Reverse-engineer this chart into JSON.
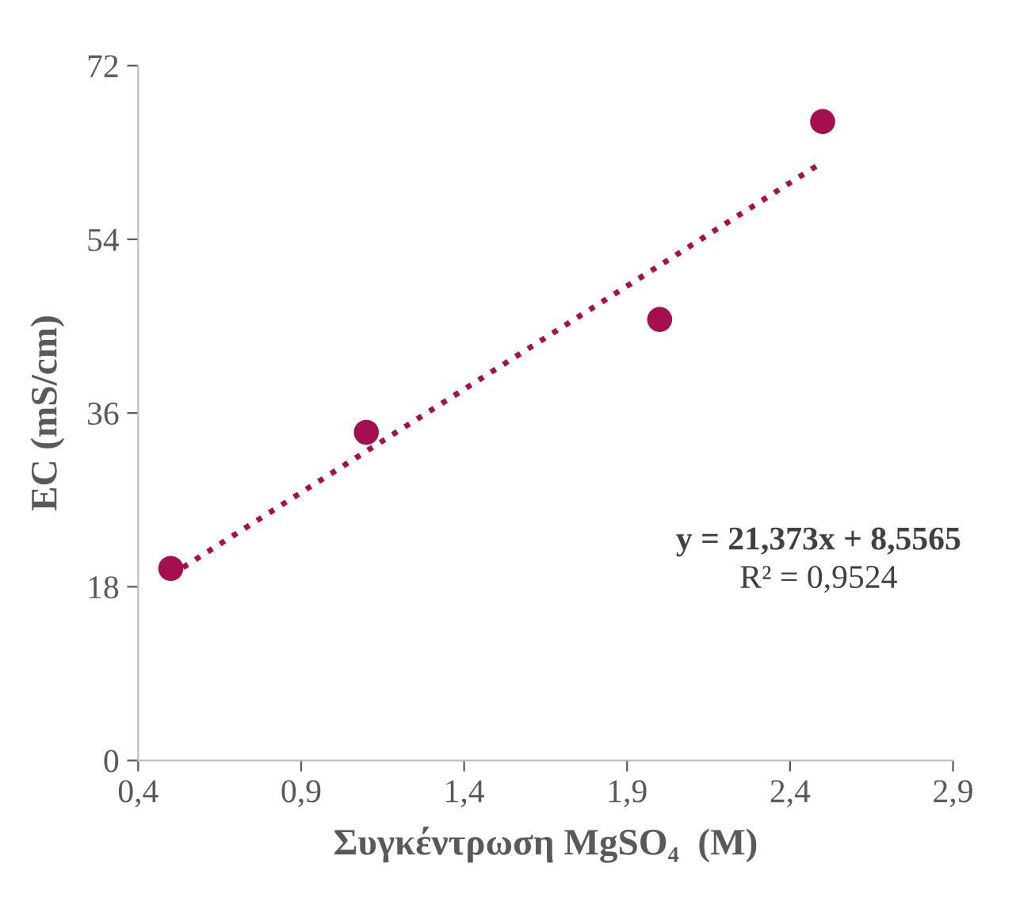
{
  "chart_data": {
    "type": "scatter",
    "xlabel": "Συγκέντρωση MgSO₄  (M)",
    "ylabel": "EC (mS/cm)",
    "series": [
      {
        "color": "#a50f4f",
        "marker": "circle",
        "x": [
          0.5,
          1.1,
          2.0,
          2.5
        ],
        "values": [
          19.9,
          34.0,
          45.7,
          66.2
        ]
      },
      {
        "type": "line",
        "color": "#a50f4f",
        "line_style": "dotted",
        "x": [
          0.5,
          2.5
        ],
        "values": [
          19.2,
          62.0
        ]
      }
    ],
    "xlim": [
      0.4,
      2.9
    ],
    "xticks": [
      {
        "value": 0.4,
        "label": "0,4"
      },
      {
        "value": 0.9,
        "label": "0,9"
      },
      {
        "value": 1.4,
        "label": "1,4"
      },
      {
        "value": 1.9,
        "label": "1,9"
      },
      {
        "value": 2.4,
        "label": "2,4"
      },
      {
        "value": 2.9,
        "label": "2,9"
      }
    ],
    "ylim": [
      0,
      72
    ],
    "yticks": [
      0,
      18,
      36,
      54,
      72
    ],
    "annotations": [
      "y = 21,373x + 8,5565",
      "R² = 0,9524"
    ],
    "grid": false,
    "legend": false
  }
}
